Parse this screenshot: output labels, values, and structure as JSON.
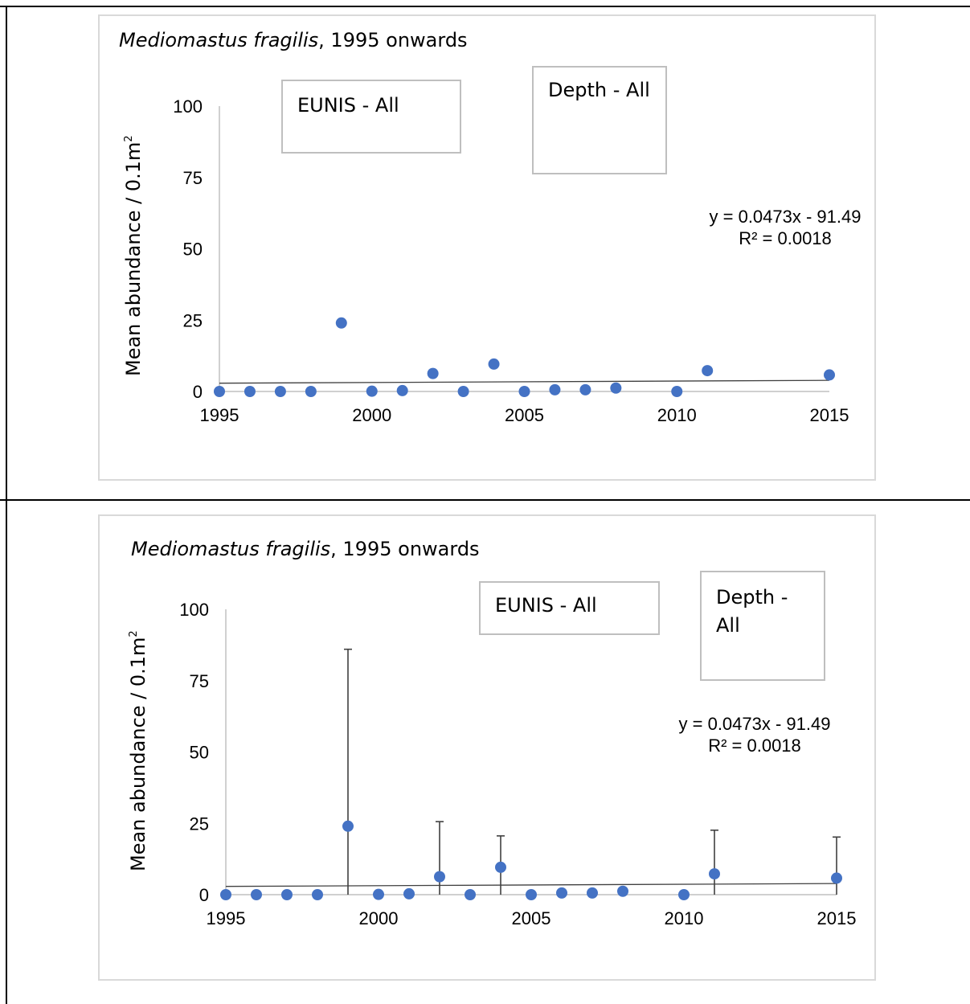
{
  "chart_data": [
    {
      "type": "scatter",
      "title_species": "Mediomastus fragilis",
      "title_rest": ", 1995 onwards",
      "ylabel": "Mean abundance / 0.1m",
      "ylabel_sup": "2",
      "xlim": [
        1995,
        2015
      ],
      "ylim": [
        0,
        100
      ],
      "x_ticks": [
        "1995",
        "2000",
        "2005",
        "2010",
        "2015"
      ],
      "y_ticks": [
        "0",
        "25",
        "50",
        "75",
        "100"
      ],
      "x": [
        1995,
        1996,
        1997,
        1998,
        1999,
        2000,
        2001,
        2002,
        2003,
        2004,
        2005,
        2006,
        2007,
        2008,
        2010,
        2011,
        2015
      ],
      "y": [
        0,
        0,
        0,
        0,
        24,
        0.1,
        0.3,
        6.3,
        0,
        9.6,
        0,
        0.6,
        0.6,
        1.2,
        0,
        7.3,
        5.8
      ],
      "trendline": {
        "equation": "y = 0.0473x - 91.49",
        "r2": "R² = 0.0018",
        "y_start": 2.9,
        "y_end": 3.9
      },
      "error_bars": [],
      "legend_boxes": {
        "eunis": "EUNIS - All",
        "depth": "Depth - All"
      },
      "marker_color": "#4472c4"
    },
    {
      "type": "scatter",
      "title_species": "Mediomastus fragilis",
      "title_rest": ", 1995 onwards",
      "ylabel": "Mean abundance / 0.1m",
      "ylabel_sup": "2",
      "xlim": [
        1995,
        2015
      ],
      "ylim": [
        0,
        100
      ],
      "x_ticks": [
        "1995",
        "2000",
        "2005",
        "2010",
        "2015"
      ],
      "y_ticks": [
        "0",
        "25",
        "50",
        "75",
        "100"
      ],
      "x": [
        1995,
        1996,
        1997,
        1998,
        1999,
        2000,
        2001,
        2002,
        2003,
        2004,
        2005,
        2006,
        2007,
        2008,
        2010,
        2011,
        2015
      ],
      "y": [
        0,
        0,
        0,
        0,
        24,
        0.1,
        0.3,
        6.3,
        0,
        9.6,
        0,
        0.6,
        0.6,
        1.2,
        0,
        7.3,
        5.8
      ],
      "trendline": {
        "equation": "y = 0.0473x - 91.49",
        "r2": "R² = 0.0018",
        "y_start": 2.9,
        "y_end": 3.9
      },
      "error_bars": [
        {
          "x": 1999,
          "y": 24,
          "upper": 86
        },
        {
          "x": 2002,
          "y": 6.3,
          "upper": 25.6
        },
        {
          "x": 2004,
          "y": 9.6,
          "upper": 20.6
        },
        {
          "x": 2011,
          "y": 7.3,
          "upper": 22.6
        },
        {
          "x": 2015,
          "y": 5.8,
          "upper": 20.2
        }
      ],
      "legend_boxes": {
        "eunis": "EUNIS - All",
        "depth_line1": "Depth -",
        "depth_line2": "All"
      },
      "marker_color": "#4472c4"
    }
  ]
}
